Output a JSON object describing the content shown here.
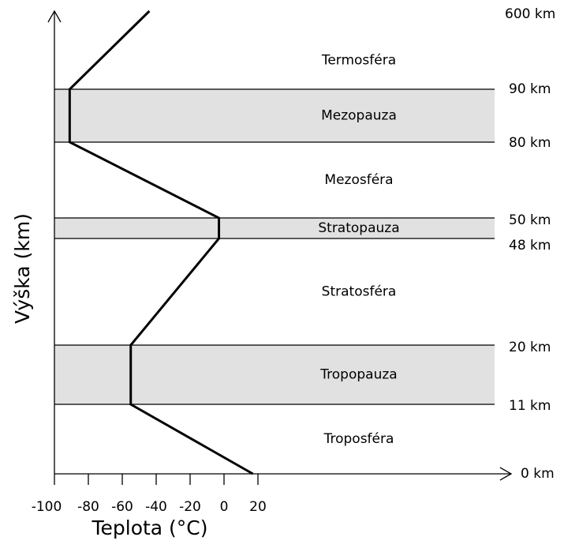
{
  "chart_data": {
    "type": "line",
    "xlabel": "Teplota (°C)",
    "ylabel": "Výška (km)",
    "xlim": [
      -100,
      20
    ],
    "xticks": [
      -100,
      -80,
      -60,
      -40,
      -20,
      0,
      20
    ],
    "ylim": [
      0,
      600
    ],
    "yticks": [
      {
        "value": 0,
        "label": "0 km"
      },
      {
        "value": 11,
        "label": "11 km"
      },
      {
        "value": 20,
        "label": "20 km"
      },
      {
        "value": 48,
        "label": "48 km"
      },
      {
        "value": 50,
        "label": "50 km"
      },
      {
        "value": 80,
        "label": "80 km"
      },
      {
        "value": 90,
        "label": "90 km"
      },
      {
        "value": 600,
        "label": "600 km"
      }
    ],
    "x": [
      17,
      -55,
      -55,
      -3,
      -3,
      -91,
      -91,
      -44
    ],
    "values": [
      0,
      11,
      20,
      48,
      50,
      80,
      90,
      600
    ],
    "color": "#000000",
    "bands": [
      {
        "name": "Troposféra",
        "from": 0,
        "to": 11,
        "shaded": false
      },
      {
        "name": "Tropopauza",
        "from": 11,
        "to": 20,
        "shaded": true
      },
      {
        "name": "Stratosféra",
        "from": 20,
        "to": 48,
        "shaded": false
      },
      {
        "name": "Stratopauza",
        "from": 48,
        "to": 50,
        "shaded": true
      },
      {
        "name": "Mezosféra",
        "from": 50,
        "to": 80,
        "shaded": false
      },
      {
        "name": "Mezopauza",
        "from": 80,
        "to": 90,
        "shaded": true
      },
      {
        "name": "Termosféra",
        "from": 90,
        "to": 600,
        "shaded": false
      }
    ]
  }
}
